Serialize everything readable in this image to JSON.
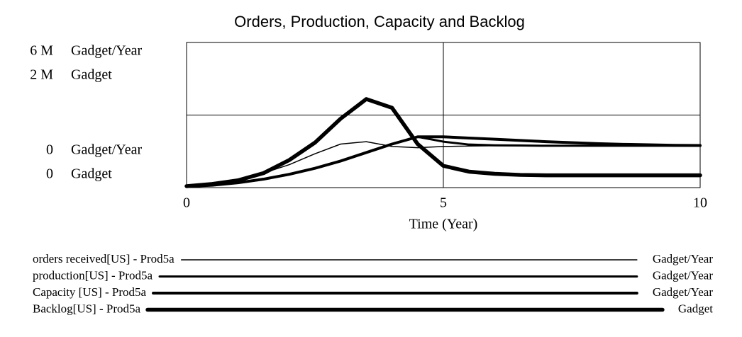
{
  "chart_data": {
    "type": "line",
    "title": "Orders, Production, Capacity and Backlog",
    "xlabel": "Time (Year)",
    "x": [
      0,
      0.5,
      1,
      1.5,
      2,
      2.5,
      3,
      3.5,
      4,
      4.5,
      5,
      5.5,
      6,
      6.5,
      7,
      7.5,
      8,
      8.5,
      9,
      9.5,
      10
    ],
    "xlim": [
      0,
      10
    ],
    "xticks": [
      0,
      5,
      10
    ],
    "ylim": [
      0,
      6000000
    ],
    "yticks": [
      0,
      {
        "value": 6000000,
        "label": "6 M"
      }
    ],
    "y_unit": "Gadget/Year",
    "y2lim": [
      0,
      2000000
    ],
    "y2ticks": [
      0,
      {
        "value": 2000000,
        "label": "2 M"
      }
    ],
    "y2_unit": "Gadget",
    "color": "#000000",
    "series": [
      {
        "name": "orders received[US] - Prod5a",
        "unit": "Gadget/Year",
        "line_width": 1.5,
        "values": [
          60000,
          150000,
          350000,
          600000,
          950000,
          1400000,
          1800000,
          1900000,
          1700000,
          1650000,
          1700000,
          1720000,
          1730000,
          1730000,
          1730000,
          1730000,
          1730000,
          1730000,
          1730000,
          1730000,
          1730000
        ]
      },
      {
        "name": "production[US] - Prod5a",
        "unit": "Gadget/Year",
        "line_width": 3,
        "values": [
          50000,
          100000,
          200000,
          350000,
          550000,
          800000,
          1100000,
          1450000,
          1800000,
          2100000,
          1900000,
          1780000,
          1750000,
          1740000,
          1730000,
          1730000,
          1730000,
          1730000,
          1730000,
          1730000,
          1730000
        ]
      },
      {
        "name": "Capacity [US] - Prod5a",
        "unit": "Gadget/Year",
        "line_width": 4,
        "values": [
          50000,
          100000,
          200000,
          350000,
          550000,
          800000,
          1100000,
          1450000,
          1800000,
          2100000,
          2100000,
          2050000,
          2000000,
          1950000,
          1900000,
          1860000,
          1820000,
          1790000,
          1770000,
          1750000,
          1740000
        ]
      },
      {
        "name": "Backlog[US] - Prod5a",
        "unit": "Gadget",
        "axis": "y2",
        "line_width": 5.5,
        "values": [
          20000,
          50000,
          100000,
          200000,
          380000,
          620000,
          950000,
          1220000,
          1100000,
          600000,
          300000,
          220000,
          190000,
          175000,
          170000,
          170000,
          170000,
          170000,
          170000,
          170000,
          170000
        ]
      }
    ]
  }
}
